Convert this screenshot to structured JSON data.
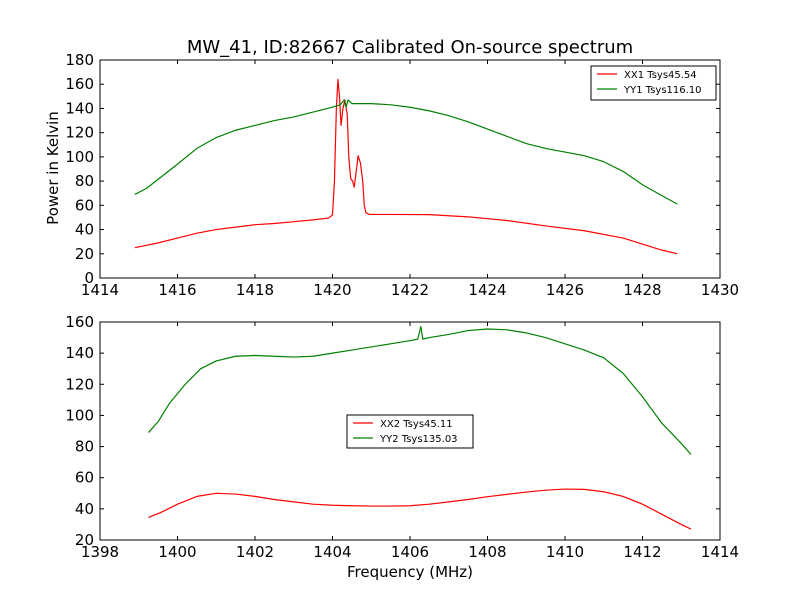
{
  "chart_data": [
    {
      "type": "line",
      "title": "MW_41, ID:82667 Calibrated On-source spectrum",
      "xlabel": "",
      "ylabel": "Power in Kelvin",
      "xlim": [
        1414,
        1430
      ],
      "ylim": [
        0,
        180
      ],
      "xticks": [
        1414,
        1416,
        1418,
        1420,
        1422,
        1424,
        1426,
        1428,
        1430
      ],
      "yticks": [
        0,
        20,
        40,
        60,
        80,
        100,
        120,
        140,
        160,
        180
      ],
      "legend_position": "upper right",
      "series": [
        {
          "name": "XX1 Tsys45.54",
          "color": "#ff0000",
          "points": [
            [
              1414.9,
              25
            ],
            [
              1415.5,
              29
            ],
            [
              1416,
              33
            ],
            [
              1416.5,
              37
            ],
            [
              1417,
              40
            ],
            [
              1417.5,
              42
            ],
            [
              1418,
              44
            ],
            [
              1418.5,
              45
            ],
            [
              1419,
              46.5
            ],
            [
              1419.5,
              48
            ],
            [
              1419.9,
              49.5
            ],
            [
              1420.0,
              52
            ],
            [
              1420.05,
              80
            ],
            [
              1420.1,
              140
            ],
            [
              1420.14,
              164
            ],
            [
              1420.18,
              150
            ],
            [
              1420.22,
              126
            ],
            [
              1420.27,
              140
            ],
            [
              1420.32,
              147
            ],
            [
              1420.38,
              135
            ],
            [
              1420.42,
              100
            ],
            [
              1420.47,
              82
            ],
            [
              1420.52,
              80
            ],
            [
              1420.56,
              75
            ],
            [
              1420.62,
              90
            ],
            [
              1420.66,
              101
            ],
            [
              1420.72,
              95
            ],
            [
              1420.78,
              80
            ],
            [
              1420.82,
              60
            ],
            [
              1420.86,
              54
            ],
            [
              1420.95,
              52.5
            ],
            [
              1421.5,
              52.5
            ],
            [
              1422.5,
              52.3
            ],
            [
              1423.5,
              50.5
            ],
            [
              1424.5,
              47.5
            ],
            [
              1425.5,
              43
            ],
            [
              1426.5,
              39
            ],
            [
              1427.5,
              33
            ],
            [
              1428.5,
              23
            ],
            [
              1428.9,
              20
            ]
          ]
        },
        {
          "name": "YY1 Tsys116.10",
          "color": "#008000",
          "points": [
            [
              1414.9,
              69
            ],
            [
              1415.2,
              74
            ],
            [
              1415.6,
              84
            ],
            [
              1416,
              94
            ],
            [
              1416.5,
              107
            ],
            [
              1417,
              116
            ],
            [
              1417.5,
              122
            ],
            [
              1418,
              126
            ],
            [
              1418.5,
              130
            ],
            [
              1419,
              133
            ],
            [
              1419.5,
              137
            ],
            [
              1420,
              141
            ],
            [
              1420.2,
              143
            ],
            [
              1420.3,
              147
            ],
            [
              1420.35,
              141
            ],
            [
              1420.4,
              147
            ],
            [
              1420.5,
              144
            ],
            [
              1421,
              144
            ],
            [
              1421.5,
              143
            ],
            [
              1422,
              141
            ],
            [
              1422.5,
              138
            ],
            [
              1423,
              134
            ],
            [
              1423.5,
              129
            ],
            [
              1424,
              123
            ],
            [
              1424.5,
              117
            ],
            [
              1425,
              111
            ],
            [
              1425.5,
              107
            ],
            [
              1426,
              104
            ],
            [
              1426.5,
              101
            ],
            [
              1427,
              96
            ],
            [
              1427.5,
              88
            ],
            [
              1428,
              77
            ],
            [
              1428.5,
              68
            ],
            [
              1428.9,
              61
            ]
          ]
        }
      ]
    },
    {
      "type": "line",
      "title": "",
      "xlabel": "Frequency (MHz)",
      "ylabel": "",
      "xlim": [
        1398,
        1414
      ],
      "ylim": [
        20,
        160
      ],
      "xticks": [
        1398,
        1400,
        1402,
        1404,
        1406,
        1408,
        1410,
        1412,
        1414
      ],
      "yticks": [
        20,
        40,
        60,
        80,
        100,
        120,
        140,
        160
      ],
      "legend_position": "center",
      "series": [
        {
          "name": "XX2 Tsys45.11",
          "color": "#ff0000",
          "points": [
            [
              1399.25,
              34.5
            ],
            [
              1399.6,
              38
            ],
            [
              1400,
              43
            ],
            [
              1400.5,
              48
            ],
            [
              1401,
              50
            ],
            [
              1401.5,
              49.5
            ],
            [
              1402,
              48
            ],
            [
              1402.5,
              46
            ],
            [
              1403,
              44.5
            ],
            [
              1403.5,
              43
            ],
            [
              1404,
              42.3
            ],
            [
              1404.5,
              42
            ],
            [
              1405,
              41.8
            ],
            [
              1405.5,
              41.8
            ],
            [
              1406,
              42
            ],
            [
              1406.5,
              43
            ],
            [
              1407,
              44.5
            ],
            [
              1407.5,
              46
            ],
            [
              1408,
              47.8
            ],
            [
              1408.5,
              49.3
            ],
            [
              1409,
              50.8
            ],
            [
              1409.5,
              52
            ],
            [
              1410,
              52.7
            ],
            [
              1410.5,
              52.5
            ],
            [
              1411,
              51
            ],
            [
              1411.5,
              48
            ],
            [
              1412,
              43
            ],
            [
              1412.5,
              36.5
            ],
            [
              1413,
              30
            ],
            [
              1413.25,
              27
            ]
          ]
        },
        {
          "name": "YY2 Tsys135.03",
          "color": "#008000",
          "points": [
            [
              1399.25,
              89
            ],
            [
              1399.5,
              96
            ],
            [
              1399.8,
              108
            ],
            [
              1400.2,
              120
            ],
            [
              1400.6,
              130
            ],
            [
              1401,
              135
            ],
            [
              1401.5,
              138
            ],
            [
              1402,
              138.5
            ],
            [
              1402.5,
              138
            ],
            [
              1403,
              137.5
            ],
            [
              1403.5,
              138
            ],
            [
              1404,
              140
            ],
            [
              1404.5,
              142
            ],
            [
              1405,
              144
            ],
            [
              1405.5,
              146
            ],
            [
              1406,
              148
            ],
            [
              1406.2,
              149
            ],
            [
              1406.28,
              157
            ],
            [
              1406.33,
              149
            ],
            [
              1406.5,
              150
            ],
            [
              1407,
              152
            ],
            [
              1407.5,
              154.5
            ],
            [
              1408,
              155.5
            ],
            [
              1408.5,
              155
            ],
            [
              1409,
              153
            ],
            [
              1409.5,
              150
            ],
            [
              1410,
              146
            ],
            [
              1410.5,
              142
            ],
            [
              1411,
              137
            ],
            [
              1411.5,
              127
            ],
            [
              1412,
              112
            ],
            [
              1412.5,
              95
            ],
            [
              1413,
              82
            ],
            [
              1413.25,
              75
            ]
          ]
        }
      ]
    }
  ]
}
